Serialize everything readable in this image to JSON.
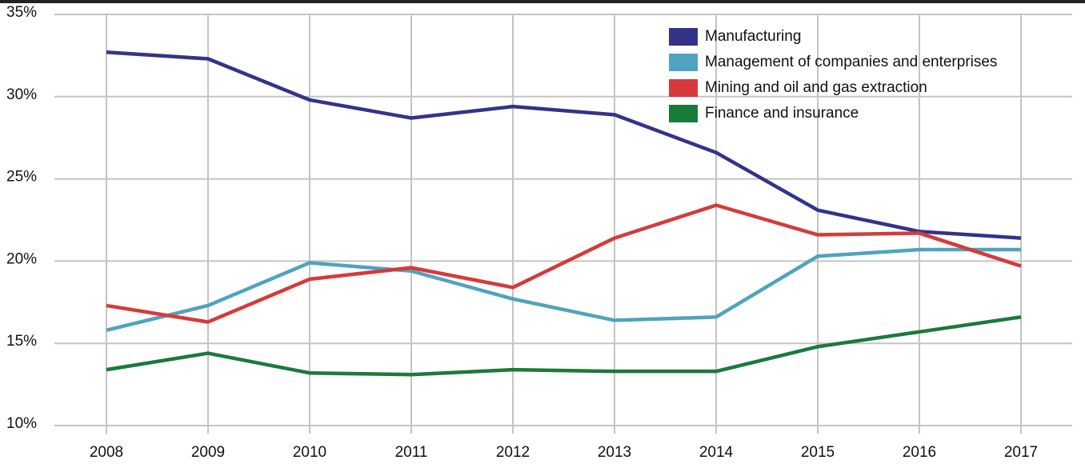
{
  "chart_data": {
    "type": "line",
    "categories": [
      "2008",
      "2009",
      "2010",
      "2011",
      "2012",
      "2013",
      "2014",
      "2015",
      "2016",
      "2017"
    ],
    "series": [
      {
        "name": "Manufacturing",
        "color": "#33338a",
        "values": [
          32.7,
          32.3,
          29.8,
          28.7,
          29.4,
          28.9,
          26.6,
          23.1,
          21.8,
          21.4
        ]
      },
      {
        "name": "Management of companies and enterprises",
        "color": "#4fa3bf",
        "values": [
          15.8,
          17.3,
          19.9,
          19.4,
          17.7,
          16.4,
          16.6,
          20.3,
          20.7,
          20.7
        ]
      },
      {
        "name": "Mining and oil and gas extraction",
        "color": "#d63a3a",
        "values": [
          17.3,
          16.3,
          18.9,
          19.6,
          18.4,
          21.4,
          23.4,
          21.6,
          21.7,
          19.7
        ]
      },
      {
        "name": "Finance and insurance",
        "color": "#1a7a3a",
        "values": [
          13.4,
          14.4,
          13.2,
          13.1,
          13.4,
          13.3,
          13.3,
          14.8,
          15.7,
          16.6
        ]
      }
    ],
    "ylim": [
      10,
      35
    ],
    "yticks": [
      {
        "value": 10,
        "label": "10%"
      },
      {
        "value": 15,
        "label": "15%"
      },
      {
        "value": 20,
        "label": "20%"
      },
      {
        "value": 25,
        "label": "25%"
      },
      {
        "value": 30,
        "label": "30%"
      },
      {
        "value": 35,
        "label": "35%"
      }
    ],
    "grid": true,
    "legend": "top-right"
  }
}
